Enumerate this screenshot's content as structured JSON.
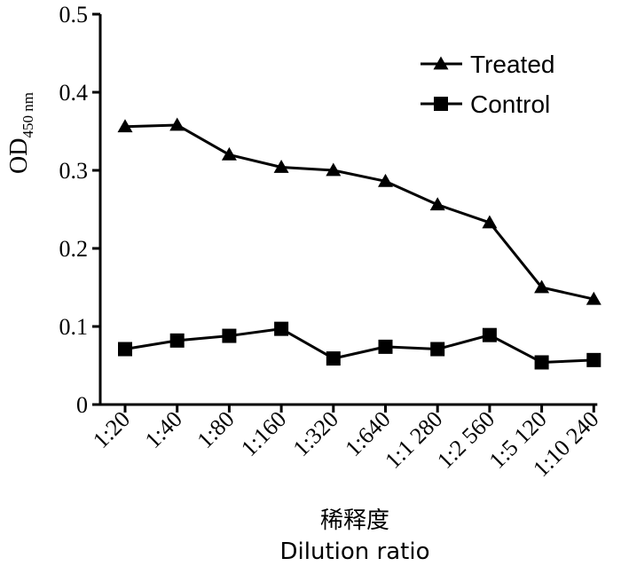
{
  "chart_data": {
    "type": "line",
    "title": "",
    "xlabel": "Dilution ratio",
    "xlabel_cn": "稀释度",
    "ylabel_main": "OD",
    "ylabel_sub": "450 nm",
    "ylim": [
      0,
      0.5
    ],
    "yticks": [
      "0",
      "0.1",
      "0.2",
      "0.3",
      "0.4",
      "0.5"
    ],
    "categories": [
      "1:20",
      "1:40",
      "1:80",
      "1:160",
      "1:320",
      "1:640",
      "1:1 280",
      "1:2 560",
      "1:5 120",
      "1:10 240"
    ],
    "legend_position": "top-right",
    "series": [
      {
        "name": "Treated",
        "marker": "triangle",
        "values": [
          0.356,
          0.358,
          0.32,
          0.304,
          0.3,
          0.286,
          0.256,
          0.233,
          0.15,
          0.135
        ]
      },
      {
        "name": "Control",
        "marker": "square",
        "values": [
          0.071,
          0.082,
          0.088,
          0.097,
          0.059,
          0.074,
          0.071,
          0.089,
          0.054,
          0.057
        ]
      }
    ]
  }
}
